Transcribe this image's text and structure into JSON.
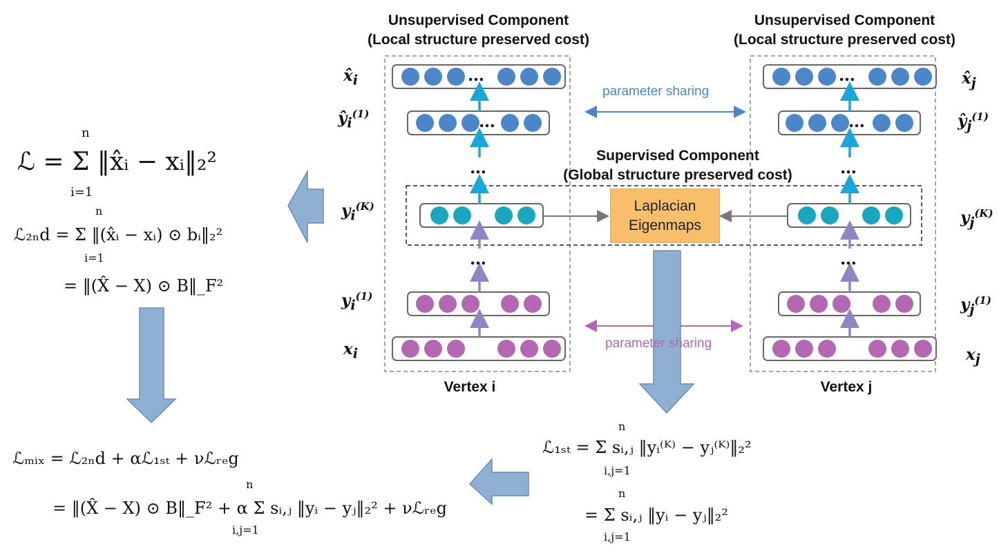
{
  "unsup_left": {
    "line1": "Unsupervised Component",
    "line2": "(Local structure preserved cost)"
  },
  "unsup_right": {
    "line1": "Unsupervised Component",
    "line2": "(Local structure preserved cost)"
  },
  "sup": {
    "line1": "Supervised Component",
    "line2": "(Global structure preserved cost)"
  },
  "laplacian": {
    "line1": "Laplacian",
    "line2": "Eigenmaps"
  },
  "param_top": "parameter sharing",
  "param_bottom": "parameter sharing",
  "vertex_i": "Vertex i",
  "vertex_j": "Vertex j",
  "ellipsis": "…",
  "vars_left": {
    "xhat": "x̂",
    "xhat_sub": "i",
    "yhat": "ŷ",
    "yhat_sub": "i",
    "yhat_sup": "(1)",
    "yK": "y",
    "yK_sub": "i",
    "yK_sup": "(K)",
    "y1": "y",
    "y1_sub": "i",
    "y1_sup": "(1)",
    "x": "x",
    "x_sub": "i"
  },
  "vars_right": {
    "xhat": "x̂",
    "xhat_sub": "j",
    "yhat": "ŷ",
    "yhat_sub": "j",
    "yhat_sup": "(1)",
    "yK": "y",
    "yK_sub": "j",
    "yK_sup": "(K)",
    "y1": "y",
    "y1_sub": "j",
    "y1_sup": "(1)",
    "x": "x",
    "x_sub": "j"
  },
  "eq": {
    "L_main": "ℒ = Σ ‖x̂ᵢ − xᵢ‖₂²",
    "L_main_sum_top": "n",
    "L_main_sum_bot": "i=1",
    "L2nd": "ℒ₂ₙd = Σ ‖(x̂ᵢ − xᵢ) ⊙ bᵢ‖₂²",
    "L2nd_sum_top": "n",
    "L2nd_sum_bot": "i=1",
    "L2nd_b": "= ‖(X̂ − X) ⊙ B‖_F²",
    "L1st": "ℒ₁ₛₜ = Σ sᵢ,ⱼ ‖yᵢ⁽ᴷ⁾ − yⱼ⁽ᴷ⁾‖₂²",
    "L1st_sum_top": "n",
    "L1st_sum_bot": "i,j=1",
    "L1st_b": "= Σ sᵢ,ⱼ ‖yᵢ − yⱼ‖₂²",
    "L1st_b_sum_top": "n",
    "L1st_b_sum_bot": "i,j=1",
    "Lmix": "ℒₘᵢₓ = ℒ₂ₙd + αℒ₁ₛₜ + νℒᵣₑg",
    "Lmix_b": "= ‖(X̂ − X) ⊙ B‖_F² + α Σ sᵢ,ⱼ ‖yᵢ − yⱼ‖₂² + νℒᵣₑg",
    "Lmix_b_sum_top": "n",
    "Lmix_b_sum_bot": "i,j=1"
  },
  "colors": {
    "blue": "#4a86c8",
    "teal": "#1aa6bd",
    "purple": "#b468b4",
    "arrow_blue": "#8fb0d3",
    "lap": "#f9be6a",
    "param_top": "#4a86c8",
    "param_bottom": "#b468b4"
  }
}
